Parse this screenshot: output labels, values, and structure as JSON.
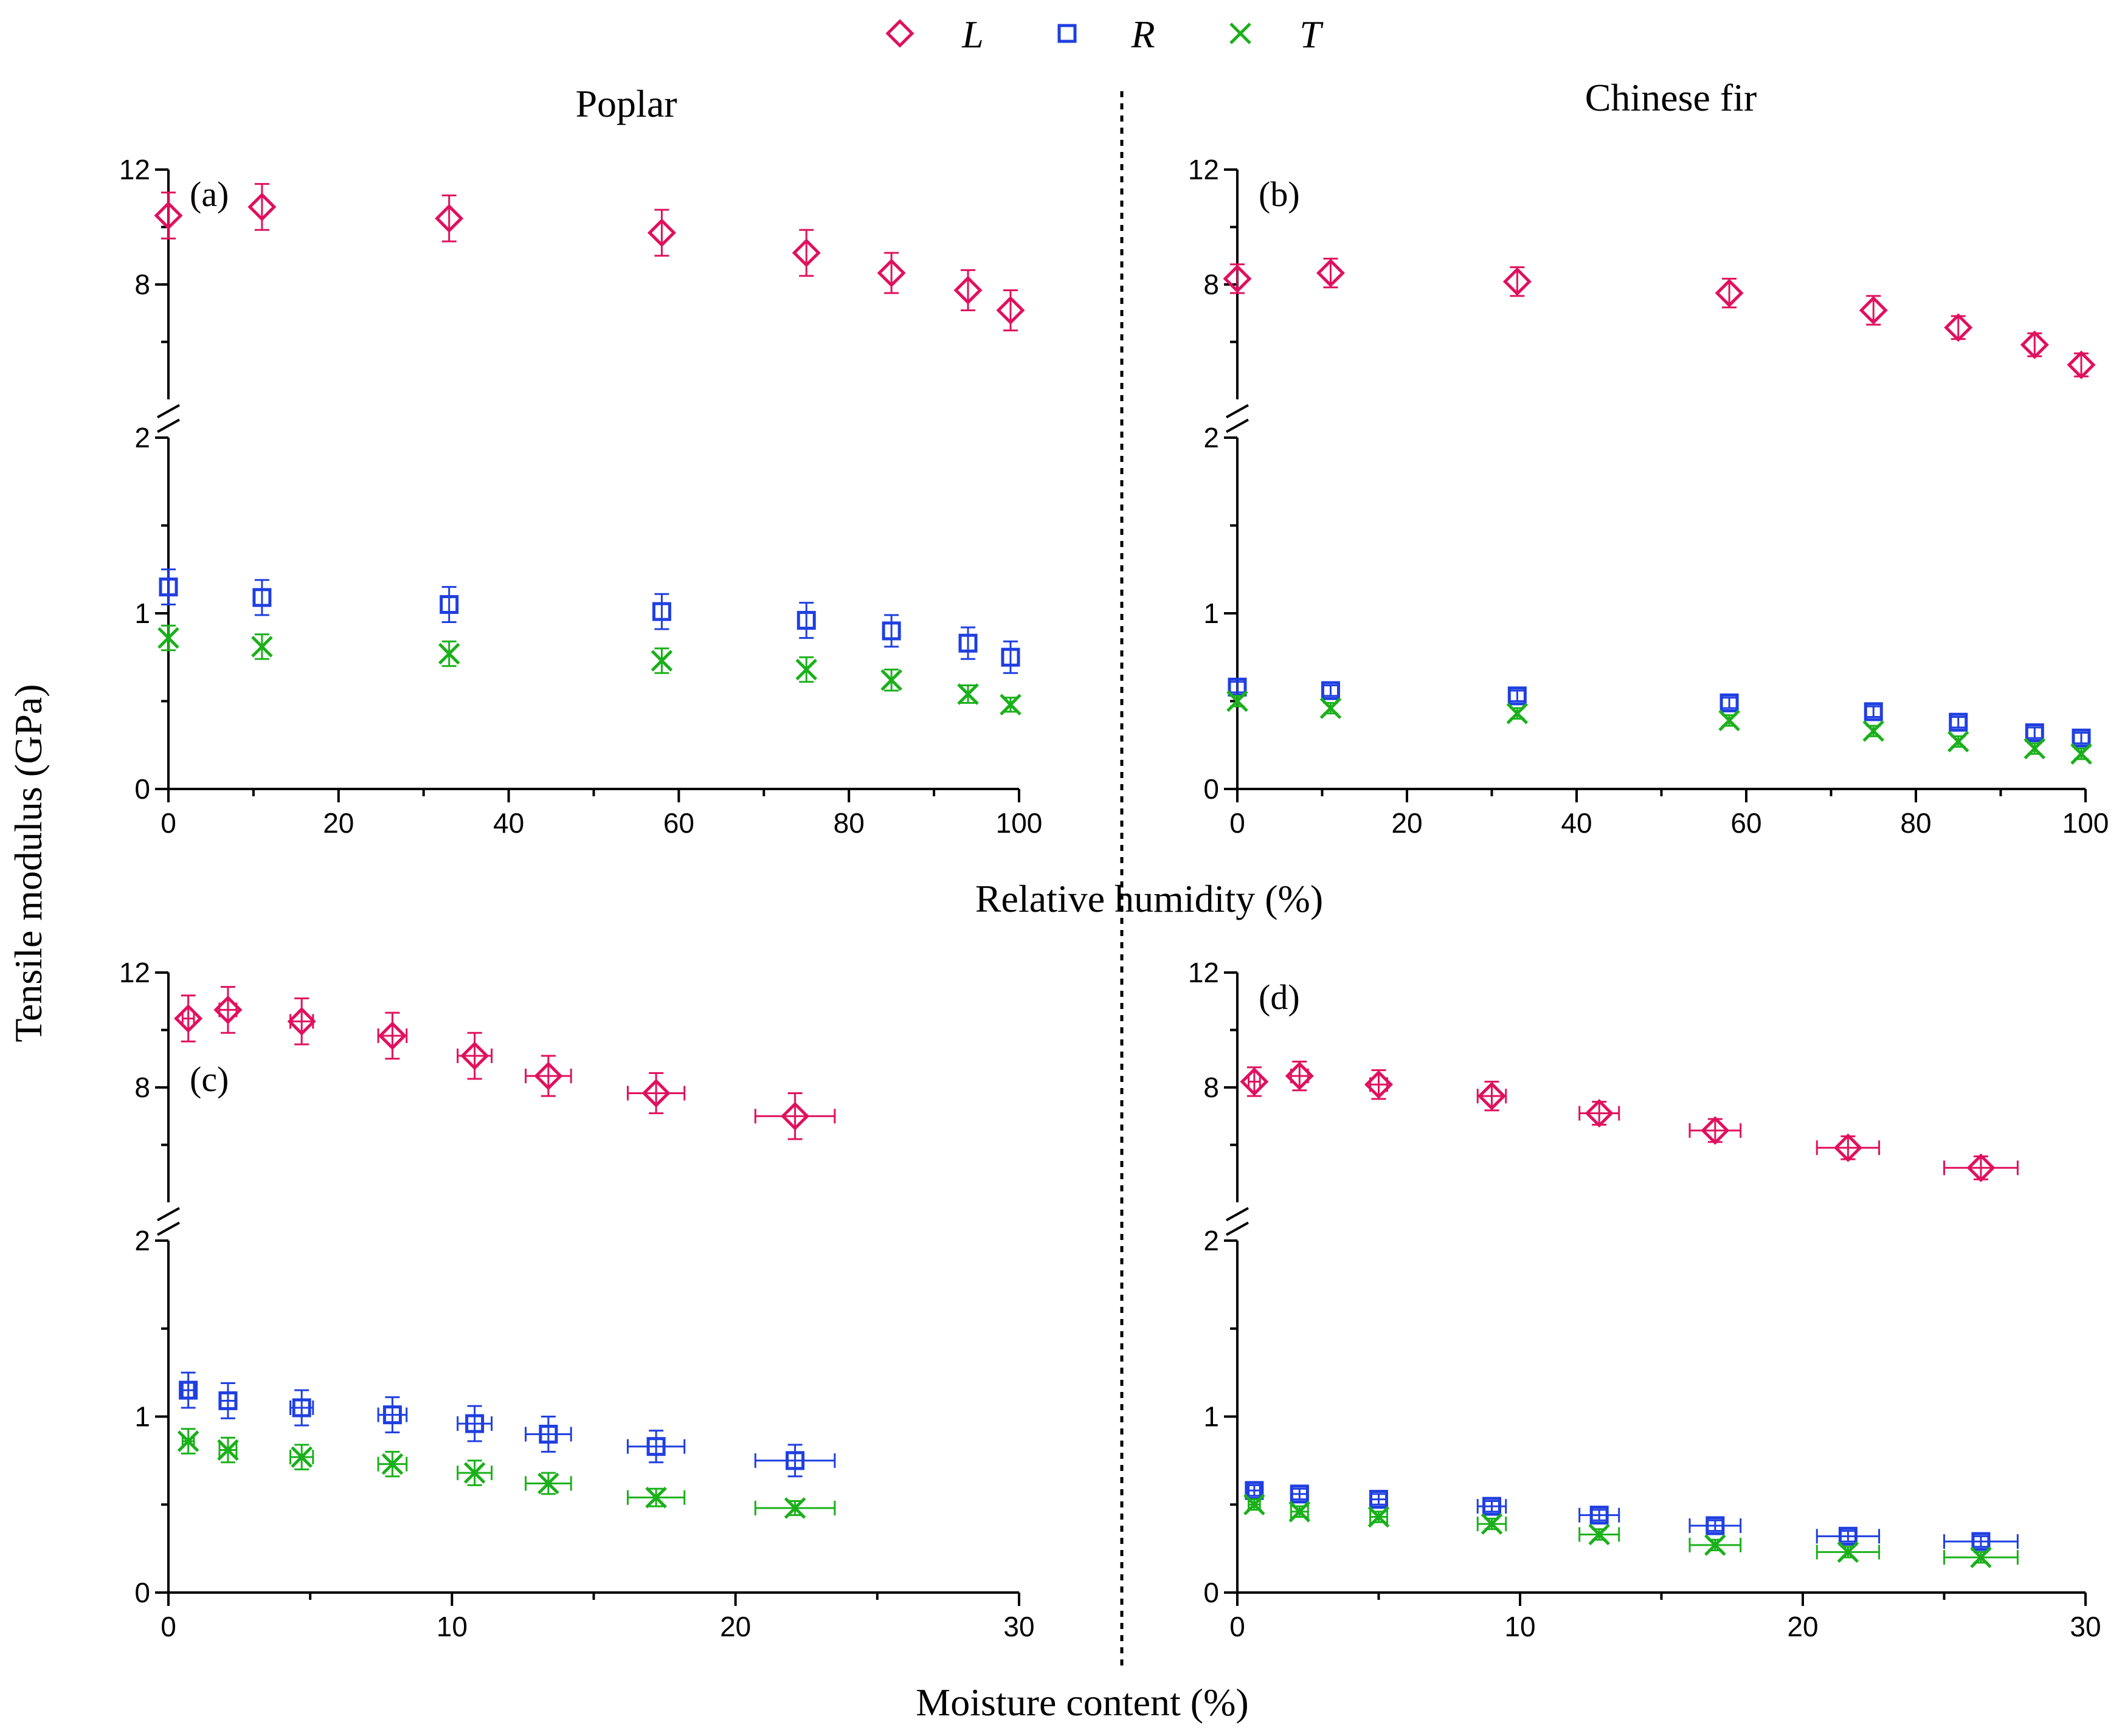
{
  "colors": {
    "L": "#e0105e",
    "R": "#1f3fe0",
    "T": "#1ab01a",
    "axis": "#000000"
  },
  "legend": [
    {
      "key": "L",
      "label": "L",
      "marker": "diamond"
    },
    {
      "key": "R",
      "label": "R",
      "marker": "square"
    },
    {
      "key": "T",
      "label": "T",
      "marker": "x-cross"
    }
  ],
  "column_titles": [
    "Poplar",
    "Chinese fir"
  ],
  "shared_ylabel": "Tensile modulus (GPa)",
  "xlabel_top": "Relative humidity (%)",
  "xlabel_bottom": "Moisture content (%)",
  "chart_data": [
    {
      "type": "scatter",
      "panel": "(a)",
      "title": "Poplar",
      "xlabel": "Relative humidity (%)",
      "ylabel": "Tensile modulus (GPa)",
      "xlim": [
        0,
        100
      ],
      "xticks": [
        0,
        20,
        40,
        60,
        80,
        100
      ],
      "ylim_lower": [
        0,
        2
      ],
      "yticks_lower": [
        0,
        1,
        2
      ],
      "ylim_upper": [
        4,
        12
      ],
      "yticks_upper": [
        8,
        12
      ],
      "axis_break": true,
      "error_bars": "vertical",
      "series": [
        {
          "name": "L",
          "x": [
            0,
            11,
            33,
            58,
            75,
            85,
            94,
            99
          ],
          "y": [
            10.4,
            10.7,
            10.3,
            9.8,
            9.1,
            8.4,
            7.8,
            7.1
          ],
          "yerr": [
            0.8,
            0.8,
            0.8,
            0.8,
            0.8,
            0.7,
            0.7,
            0.7
          ]
        },
        {
          "name": "R",
          "x": [
            0,
            11,
            33,
            58,
            75,
            85,
            94,
            99
          ],
          "y": [
            1.15,
            1.09,
            1.05,
            1.01,
            0.96,
            0.9,
            0.83,
            0.75
          ],
          "yerr": [
            0.1,
            0.1,
            0.1,
            0.1,
            0.1,
            0.09,
            0.09,
            0.09
          ]
        },
        {
          "name": "T",
          "x": [
            0,
            11,
            33,
            58,
            75,
            85,
            94,
            99
          ],
          "y": [
            0.86,
            0.81,
            0.77,
            0.73,
            0.68,
            0.62,
            0.54,
            0.48
          ],
          "yerr": [
            0.07,
            0.07,
            0.07,
            0.07,
            0.07,
            0.06,
            0.05,
            0.04
          ]
        }
      ]
    },
    {
      "type": "scatter",
      "panel": "(b)",
      "title": "Chinese fir",
      "xlabel": "Relative humidity (%)",
      "ylabel": "Tensile modulus (GPa)",
      "xlim": [
        0,
        100
      ],
      "xticks": [
        0,
        20,
        40,
        60,
        80,
        100
      ],
      "ylim_lower": [
        0,
        2
      ],
      "yticks_lower": [
        0,
        1,
        2
      ],
      "ylim_upper": [
        4,
        12
      ],
      "yticks_upper": [
        8,
        12
      ],
      "axis_break": true,
      "error_bars": "vertical",
      "series": [
        {
          "name": "L",
          "x": [
            0,
            11,
            33,
            58,
            75,
            85,
            94,
            99.5
          ],
          "y": [
            8.2,
            8.4,
            8.1,
            7.7,
            7.1,
            6.5,
            5.9,
            5.2
          ],
          "yerr": [
            0.5,
            0.5,
            0.5,
            0.5,
            0.5,
            0.4,
            0.4,
            0.4
          ]
        },
        {
          "name": "R",
          "x": [
            0,
            11,
            33,
            58,
            75,
            85,
            94,
            99.5
          ],
          "y": [
            0.58,
            0.56,
            0.53,
            0.49,
            0.44,
            0.38,
            0.32,
            0.29
          ],
          "yerr": [
            0.03,
            0.03,
            0.03,
            0.03,
            0.03,
            0.03,
            0.03,
            0.03
          ]
        },
        {
          "name": "T",
          "x": [
            0,
            11,
            33,
            58,
            75,
            85,
            94,
            99.5
          ],
          "y": [
            0.5,
            0.46,
            0.43,
            0.39,
            0.33,
            0.27,
            0.23,
            0.2
          ],
          "yerr": [
            0.03,
            0.03,
            0.03,
            0.03,
            0.03,
            0.03,
            0.03,
            0.03
          ]
        }
      ]
    },
    {
      "type": "scatter",
      "panel": "(c)",
      "title": "Poplar",
      "xlabel": "Moisture content (%)",
      "ylabel": "Tensile modulus (GPa)",
      "xlim": [
        0,
        30
      ],
      "xticks": [
        0,
        10,
        20,
        30
      ],
      "ylim_lower": [
        0,
        2
      ],
      "yticks_lower": [
        0,
        1,
        2
      ],
      "ylim_upper": [
        4,
        12
      ],
      "yticks_upper": [
        8,
        12
      ],
      "axis_break": true,
      "error_bars": "both",
      "series": [
        {
          "name": "L",
          "x": [
            0.7,
            2.1,
            4.7,
            7.9,
            10.8,
            13.4,
            17.2,
            22.1
          ],
          "y": [
            10.4,
            10.7,
            10.3,
            9.8,
            9.1,
            8.4,
            7.8,
            7.0
          ],
          "xerr": [
            0.2,
            0.3,
            0.4,
            0.5,
            0.6,
            0.8,
            1.0,
            1.4
          ],
          "yerr": [
            0.8,
            0.8,
            0.8,
            0.8,
            0.8,
            0.7,
            0.7,
            0.8
          ]
        },
        {
          "name": "R",
          "x": [
            0.7,
            2.1,
            4.7,
            7.9,
            10.8,
            13.4,
            17.2,
            22.1
          ],
          "y": [
            1.15,
            1.09,
            1.05,
            1.01,
            0.96,
            0.9,
            0.83,
            0.75
          ],
          "xerr": [
            0.2,
            0.3,
            0.4,
            0.5,
            0.6,
            0.8,
            1.0,
            1.4
          ],
          "yerr": [
            0.1,
            0.1,
            0.1,
            0.1,
            0.1,
            0.1,
            0.09,
            0.09
          ]
        },
        {
          "name": "T",
          "x": [
            0.7,
            2.1,
            4.7,
            7.9,
            10.8,
            13.4,
            17.2,
            22.1
          ],
          "y": [
            0.86,
            0.81,
            0.77,
            0.73,
            0.68,
            0.62,
            0.54,
            0.48
          ],
          "xerr": [
            0.2,
            0.3,
            0.4,
            0.5,
            0.6,
            0.8,
            1.0,
            1.4
          ],
          "yerr": [
            0.07,
            0.07,
            0.07,
            0.07,
            0.07,
            0.06,
            0.05,
            0.04
          ]
        }
      ]
    },
    {
      "type": "scatter",
      "panel": "(d)",
      "title": "Chinese fir",
      "xlabel": "Moisture content (%)",
      "ylabel": "Tensile modulus (GPa)",
      "xlim": [
        0,
        30
      ],
      "xticks": [
        0,
        10,
        20,
        30
      ],
      "ylim_lower": [
        0,
        2
      ],
      "yticks_lower": [
        0,
        1,
        2
      ],
      "ylim_upper": [
        4,
        12
      ],
      "yticks_upper": [
        8,
        12
      ],
      "axis_break": true,
      "error_bars": "both",
      "series": [
        {
          "name": "L",
          "x": [
            0.6,
            2.2,
            5.0,
            9.0,
            12.8,
            16.9,
            21.6,
            26.3
          ],
          "y": [
            8.2,
            8.4,
            8.1,
            7.7,
            7.1,
            6.5,
            5.9,
            5.2
          ],
          "xerr": [
            0.2,
            0.3,
            0.3,
            0.5,
            0.7,
            0.9,
            1.1,
            1.3
          ],
          "yerr": [
            0.5,
            0.5,
            0.5,
            0.5,
            0.4,
            0.4,
            0.4,
            0.4
          ]
        },
        {
          "name": "R",
          "x": [
            0.6,
            2.2,
            5.0,
            9.0,
            12.8,
            16.9,
            21.6,
            26.3
          ],
          "y": [
            0.58,
            0.56,
            0.53,
            0.49,
            0.44,
            0.38,
            0.32,
            0.29
          ],
          "xerr": [
            0.2,
            0.3,
            0.3,
            0.5,
            0.7,
            0.9,
            1.1,
            1.3
          ],
          "yerr": [
            0.03,
            0.03,
            0.03,
            0.03,
            0.03,
            0.03,
            0.03,
            0.03
          ]
        },
        {
          "name": "T",
          "x": [
            0.6,
            2.2,
            5.0,
            9.0,
            12.8,
            16.9,
            21.6,
            26.3
          ],
          "y": [
            0.5,
            0.46,
            0.43,
            0.39,
            0.33,
            0.27,
            0.23,
            0.2
          ],
          "xerr": [
            0.2,
            0.3,
            0.3,
            0.5,
            0.7,
            0.9,
            1.1,
            1.3
          ],
          "yerr": [
            0.03,
            0.03,
            0.03,
            0.03,
            0.03,
            0.03,
            0.03,
            0.03
          ]
        }
      ]
    }
  ]
}
